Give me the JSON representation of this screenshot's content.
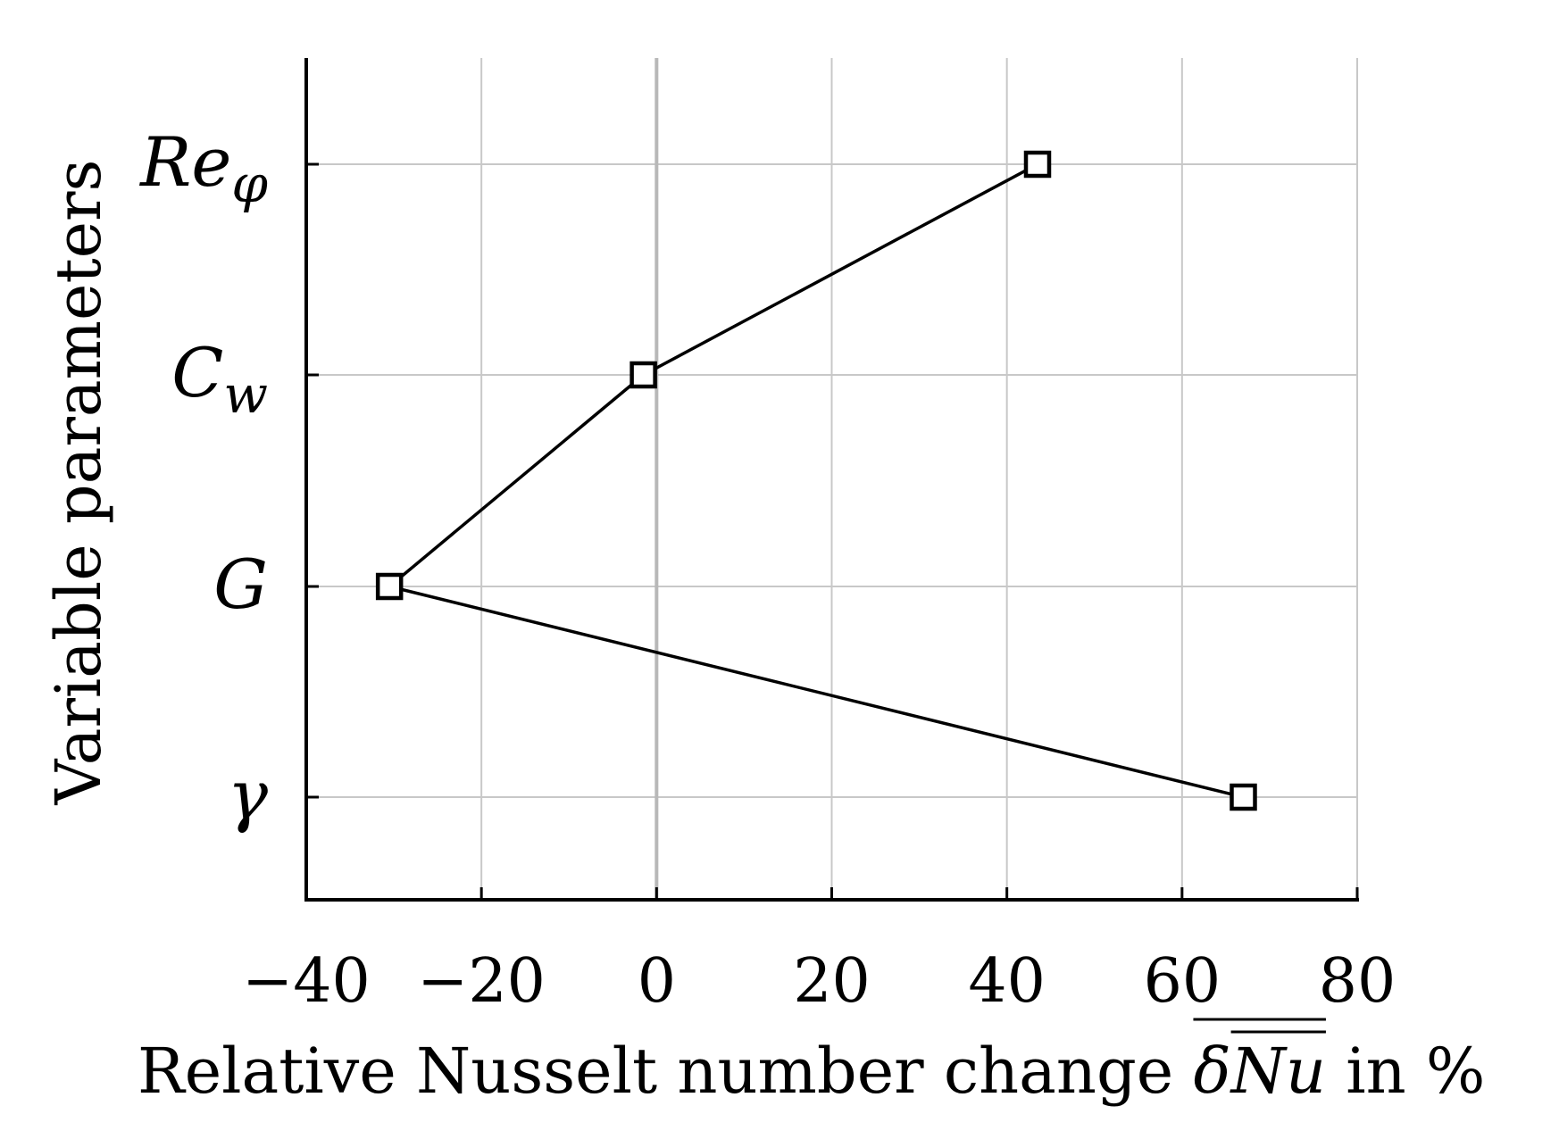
{
  "chart_data": {
    "type": "line",
    "xlabel_prefix": "Relative Nusselt number change ",
    "xlabel_symbol": "δNu",
    "xlabel_suffix": " in %",
    "ylabel": "Variable parameters",
    "xlim": [
      -40,
      80
    ],
    "xticks": [
      -40,
      -20,
      0,
      20,
      40,
      60,
      80
    ],
    "xtick_labels": [
      "−40",
      "−20",
      "0",
      "20",
      "40",
      "60",
      "80"
    ],
    "categories": [
      "γ",
      "G",
      "Cw",
      "Reφ"
    ],
    "category_labels": [
      {
        "main": "γ",
        "sub": ""
      },
      {
        "main": "G",
        "sub": ""
      },
      {
        "main": "C",
        "sub": "w"
      },
      {
        "main": "Re",
        "sub": "φ"
      }
    ],
    "grid": true,
    "series": [
      {
        "marker": "square",
        "points": [
          {
            "category": "Reφ",
            "x": 43.5
          },
          {
            "category": "Cw",
            "x": -1.5
          },
          {
            "category": "G",
            "x": -30.5
          },
          {
            "category": "γ",
            "x": 67
          }
        ]
      }
    ]
  }
}
